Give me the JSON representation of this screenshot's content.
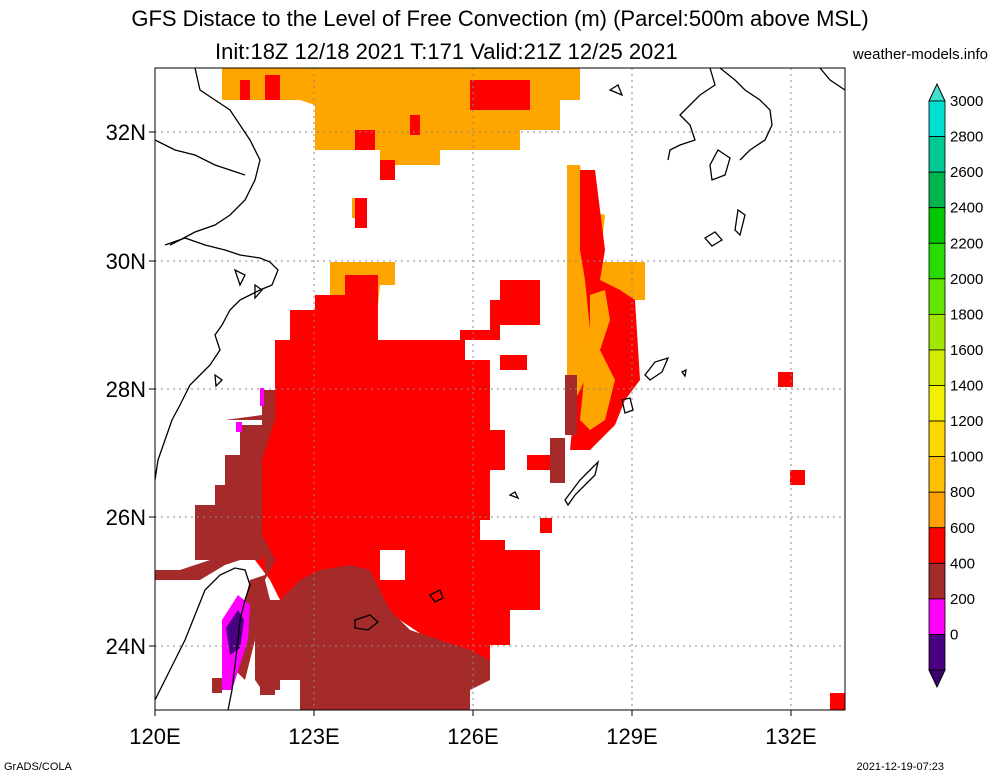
{
  "title_line1": "GFS Distace to the Level of Free Convection (m) (Parcel:500m above MSL)",
  "title_line2": "Init:18Z 12/18 2021 T:171 Valid:21Z 12/25 2021",
  "source": "weather-models.info",
  "footer_left": "GrADS/COLA",
  "footer_right": "2021-12-19-07:23",
  "axes": {
    "lat_labels": [
      "32N",
      "30N",
      "28N",
      "26N",
      "24N"
    ],
    "lon_labels": [
      "120E",
      "123E",
      "126E",
      "129E",
      "132E"
    ]
  },
  "colorbar": {
    "labels": [
      "3000",
      "2800",
      "2600",
      "2400",
      "2200",
      "2000",
      "1800",
      "1600",
      "1400",
      "1200",
      "1000",
      "800",
      "600",
      "400",
      "200",
      "0"
    ],
    "colors": [
      "#00e0d0",
      "#00c896",
      "#00b450",
      "#00c800",
      "#28dc00",
      "#64e600",
      "#a0e600",
      "#d2eb00",
      "#f0f000",
      "#ffd700",
      "#ffbe00",
      "#ffa000",
      "#ff0000",
      "#a52a2a",
      "#ff00ff",
      "#4b0082"
    ],
    "top_arrow_color": "#40e0d0",
    "bottom_arrow_color": "#3b0070"
  },
  "field_colors": {
    "brown": "#a52a2a",
    "red": "#ff0000",
    "orange": "#ffa500",
    "magenta": "#ff00ff",
    "purple": "#4b0082"
  }
}
